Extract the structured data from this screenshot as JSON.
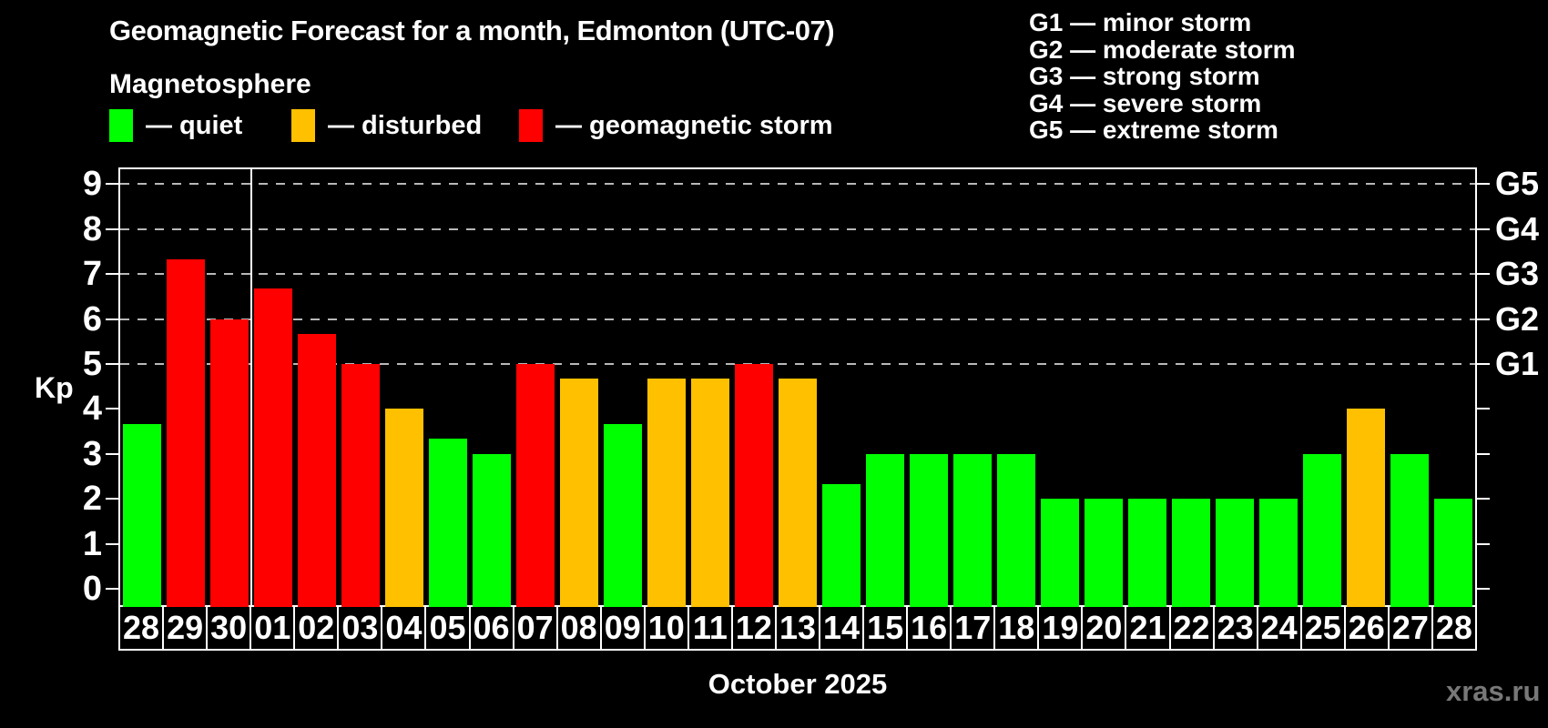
{
  "header": {
    "title": "Geomagnetic Forecast for a month, Edmonton (UTC-07)",
    "subtitle": "Magnetosphere"
  },
  "legend": {
    "items": [
      {
        "name": "quiet",
        "label": "— quiet",
        "color": "#00ff00"
      },
      {
        "name": "disturbed",
        "label": "— disturbed",
        "color": "#ffc000"
      },
      {
        "name": "storm",
        "label": "— geomagnetic storm",
        "color": "#ff0000"
      }
    ]
  },
  "storm_scale": {
    "items": [
      "G1 — minor storm",
      "G2 — moderate storm",
      "G3 — strong storm",
      "G4 — severe storm",
      "G5 — extreme storm"
    ]
  },
  "chart_data": {
    "type": "bar",
    "title": "Geomagnetic Forecast for a month, Edmonton (UTC-07)",
    "subtitle": "Magnetosphere",
    "ylabel": "Kp",
    "xlabel": "October 2025",
    "ylim": [
      0,
      9
    ],
    "y_ticks": [
      0,
      1,
      2,
      3,
      4,
      5,
      6,
      7,
      8,
      9
    ],
    "gridlines_at": [
      5,
      6,
      7,
      8,
      9
    ],
    "grid_on": true,
    "grid_color": "#b8b8b8",
    "legend_position": "top-left",
    "right_axis_labels": [
      {
        "kp": 5,
        "label": "G1"
      },
      {
        "kp": 6,
        "label": "G2"
      },
      {
        "kp": 7,
        "label": "G3"
      },
      {
        "kp": 8,
        "label": "G4"
      },
      {
        "kp": 9,
        "label": "G5"
      }
    ],
    "categories": [
      "28",
      "29",
      "30",
      "01",
      "02",
      "03",
      "04",
      "05",
      "06",
      "07",
      "08",
      "09",
      "10",
      "11",
      "12",
      "13",
      "14",
      "15",
      "16",
      "17",
      "18",
      "19",
      "20",
      "21",
      "22",
      "23",
      "24",
      "25",
      "26",
      "27",
      "28"
    ],
    "values": [
      3.67,
      7.33,
      6,
      6.67,
      5.67,
      5,
      4,
      3.33,
      3,
      5,
      4.67,
      3.67,
      4.67,
      4.67,
      5,
      4.67,
      2.33,
      3,
      3,
      3,
      3,
      2,
      2,
      2,
      2,
      2,
      2,
      3,
      4,
      3,
      2
    ],
    "statuses": [
      "quiet",
      "storm",
      "storm",
      "storm",
      "storm",
      "storm",
      "disturbed",
      "quiet",
      "quiet",
      "storm",
      "disturbed",
      "quiet",
      "disturbed",
      "disturbed",
      "storm",
      "disturbed",
      "quiet",
      "quiet",
      "quiet",
      "quiet",
      "quiet",
      "quiet",
      "quiet",
      "quiet",
      "quiet",
      "quiet",
      "quiet",
      "quiet",
      "disturbed",
      "quiet",
      "quiet"
    ],
    "status_colors": {
      "quiet": "#00ff00",
      "disturbed": "#ffc000",
      "storm": "#ff0000"
    },
    "month_separator_after_index": 2
  },
  "footer": {
    "month_label": "October 2025",
    "watermark": "xras.ru",
    "watermark_color": "#787878"
  }
}
